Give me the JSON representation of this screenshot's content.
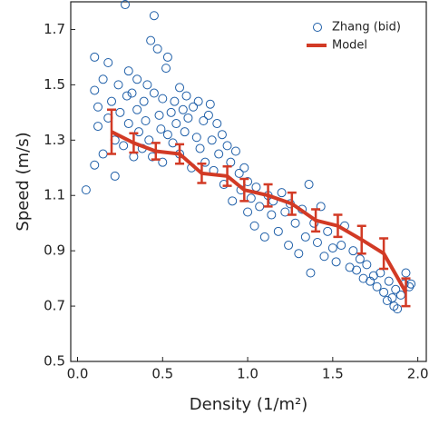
{
  "chart_data": {
    "type": "scatter",
    "xlabel": "Density (1/m²)",
    "ylabel": "Speed (m/s)",
    "xlim": [
      -0.04,
      2.05
    ],
    "ylim": [
      0.5,
      1.8
    ],
    "xticks": [
      {
        "value": 0,
        "label": "0.0"
      },
      0.5,
      {
        "value": 1,
        "label": "1.0"
      },
      1.5,
      {
        "value": 2,
        "label": "2.0"
      }
    ],
    "yticks": [
      0.5,
      0.7,
      0.9,
      1.1,
      1.3,
      1.5,
      1.7
    ],
    "legend": "upper right",
    "series": [
      {
        "name": "Zhang (bid)",
        "type": "scatter",
        "color": "#1f5fa8",
        "x": [
          0.05,
          0.1,
          0.1,
          0.1,
          0.12,
          0.12,
          0.15,
          0.15,
          0.18,
          0.18,
          0.2,
          0.22,
          0.22,
          0.24,
          0.25,
          0.27,
          0.28,
          0.29,
          0.3,
          0.3,
          0.32,
          0.33,
          0.35,
          0.35,
          0.36,
          0.38,
          0.39,
          0.4,
          0.41,
          0.42,
          0.43,
          0.44,
          0.45,
          0.45,
          0.47,
          0.48,
          0.49,
          0.5,
          0.5,
          0.52,
          0.53,
          0.53,
          0.55,
          0.56,
          0.57,
          0.58,
          0.6,
          0.6,
          0.62,
          0.63,
          0.64,
          0.65,
          0.67,
          0.68,
          0.7,
          0.71,
          0.72,
          0.74,
          0.75,
          0.77,
          0.78,
          0.79,
          0.8,
          0.82,
          0.83,
          0.85,
          0.86,
          0.88,
          0.9,
          0.91,
          0.93,
          0.95,
          0.96,
          0.98,
          1.0,
          1.0,
          1.02,
          1.04,
          1.05,
          1.07,
          1.1,
          1.12,
          1.14,
          1.15,
          1.18,
          1.2,
          1.22,
          1.24,
          1.25,
          1.28,
          1.3,
          1.32,
          1.34,
          1.36,
          1.37,
          1.39,
          1.41,
          1.43,
          1.45,
          1.47,
          1.5,
          1.52,
          1.55,
          1.57,
          1.6,
          1.62,
          1.64,
          1.66,
          1.68,
          1.7,
          1.72,
          1.74,
          1.76,
          1.78,
          1.8,
          1.82,
          1.83,
          1.85,
          1.86,
          1.87,
          1.88,
          1.9,
          1.92,
          1.93,
          1.95,
          1.96
        ],
        "values": [
          1.12,
          1.6,
          1.48,
          1.21,
          1.35,
          1.42,
          1.25,
          1.52,
          1.58,
          1.38,
          1.44,
          1.3,
          1.17,
          1.5,
          1.4,
          1.28,
          1.79,
          1.46,
          1.55,
          1.36,
          1.47,
          1.24,
          1.41,
          1.52,
          1.33,
          1.27,
          1.44,
          1.37,
          1.5,
          1.3,
          1.66,
          1.24,
          1.75,
          1.47,
          1.63,
          1.39,
          1.34,
          1.22,
          1.45,
          1.56,
          1.6,
          1.32,
          1.4,
          1.29,
          1.44,
          1.36,
          1.49,
          1.25,
          1.41,
          1.33,
          1.46,
          1.38,
          1.2,
          1.42,
          1.31,
          1.44,
          1.27,
          1.37,
          1.22,
          1.39,
          1.43,
          1.3,
          1.19,
          1.36,
          1.25,
          1.32,
          1.14,
          1.28,
          1.22,
          1.08,
          1.26,
          1.18,
          1.12,
          1.2,
          1.15,
          1.04,
          1.09,
          0.99,
          1.13,
          1.06,
          0.95,
          1.1,
          1.03,
          1.08,
          0.97,
          1.11,
          1.04,
          0.92,
          1.07,
          1.0,
          0.89,
          1.05,
          0.95,
          1.14,
          0.82,
          1.0,
          0.93,
          1.06,
          0.88,
          0.97,
          0.91,
          0.86,
          0.92,
          0.99,
          0.84,
          0.9,
          0.83,
          0.87,
          0.8,
          0.85,
          0.79,
          0.81,
          0.77,
          0.82,
          0.75,
          0.72,
          0.79,
          0.73,
          0.7,
          0.76,
          0.69,
          0.74,
          0.78,
          0.82,
          0.77,
          0.78
        ]
      },
      {
        "name": "Model",
        "type": "line",
        "color": "#d23a25",
        "x": [
          0.2,
          0.33,
          0.46,
          0.6,
          0.73,
          0.88,
          0.98,
          1.12,
          1.26,
          1.4,
          1.53,
          1.67,
          1.8,
          1.93
        ],
        "values": [
          1.33,
          1.29,
          1.26,
          1.25,
          1.18,
          1.17,
          1.12,
          1.1,
          1.07,
          1.01,
          0.99,
          0.94,
          0.89,
          0.75
        ],
        "errors": [
          0.08,
          0.035,
          0.03,
          0.035,
          0.035,
          0.035,
          0.04,
          0.04,
          0.04,
          0.04,
          0.04,
          0.05,
          0.055,
          0.05
        ]
      }
    ]
  }
}
